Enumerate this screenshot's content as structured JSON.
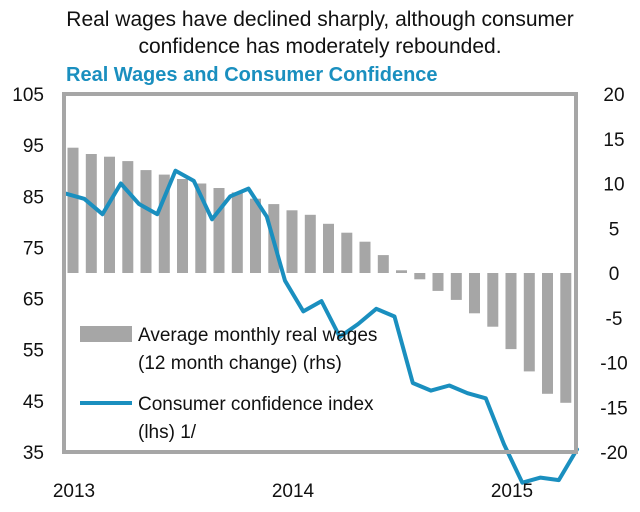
{
  "headline": {
    "line1": "Real wages have declined sharply, although consumer",
    "line2": "confidence has moderately rebounded."
  },
  "chart_data": {
    "type": "bar+line",
    "title": "Real Wages and Consumer Confidence",
    "x_ticks": [
      "2013",
      "2014",
      "2015"
    ],
    "x_tick_positions": [
      0,
      12,
      24
    ],
    "left_axis": {
      "range": [
        35,
        105
      ],
      "ticks": [
        35,
        45,
        55,
        65,
        75,
        85,
        95,
        105
      ]
    },
    "right_axis": {
      "range": [
        -20,
        20
      ],
      "ticks": [
        -20,
        -15,
        -10,
        -5,
        0,
        5,
        10,
        15,
        20
      ]
    },
    "grid": false,
    "legend_placement": "bottom-left (inside plot)",
    "series": [
      {
        "name": "Average monthly real wages",
        "name_line2": "(12 month change) (rhs)",
        "type": "bar",
        "axis": "right",
        "color": "#a6a6a6",
        "values": [
          14.0,
          13.3,
          13.0,
          12.5,
          11.5,
          11.0,
          10.5,
          10.0,
          9.5,
          9.0,
          8.3,
          7.7,
          7.0,
          6.5,
          5.5,
          4.5,
          3.5,
          2.0,
          0.3,
          -0.7,
          -2.0,
          -3.0,
          -4.5,
          -6.0,
          -8.5,
          -11.0,
          -13.5,
          -14.5
        ]
      },
      {
        "name": "Consumer confidence index",
        "name_line2": "(lhs) 1/",
        "type": "line",
        "axis": "left",
        "color": "#1a8fbf",
        "values": [
          85.5,
          84.5,
          81.5,
          87.5,
          83.5,
          81.5,
          90.0,
          88.0,
          80.5,
          85.0,
          86.5,
          81.0,
          68.5,
          62.5,
          64.5,
          57.5,
          60.0,
          63.0,
          61.5,
          48.5,
          47.0,
          48.0,
          46.5,
          45.5,
          36.5,
          29.0,
          30.0,
          29.5,
          35.5
        ]
      }
    ]
  }
}
